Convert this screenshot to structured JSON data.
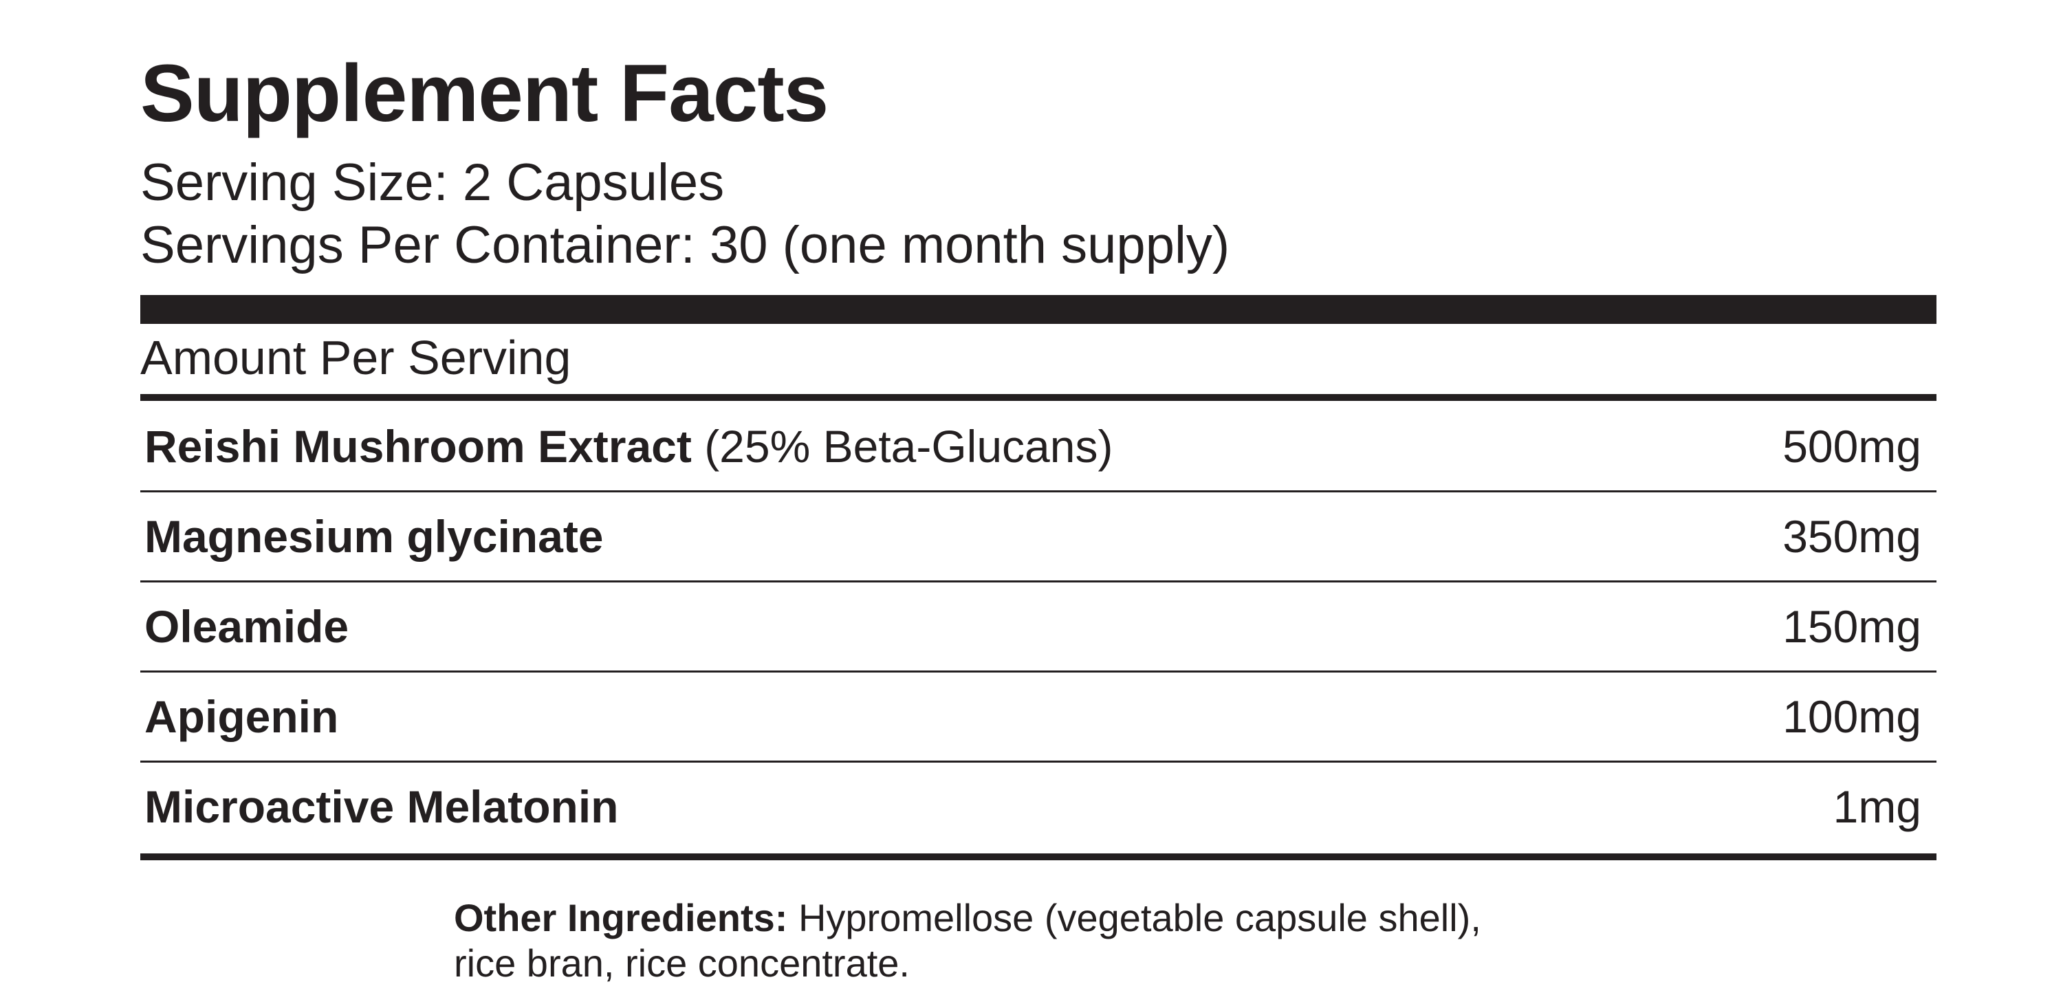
{
  "header": {
    "title": "Supplement Facts",
    "serving_size": "Serving Size: 2 Capsules",
    "servings_per_container": "Servings Per Container: 30 (one month supply)"
  },
  "table": {
    "header": "Amount Per Serving",
    "rows": [
      {
        "name": "Reishi Mushroom Extract",
        "note": "(25% Beta-Glucans)",
        "amount": "500mg"
      },
      {
        "name": "Magnesium glycinate",
        "amount": "350mg"
      },
      {
        "name": "Oleamide",
        "amount": "150mg"
      },
      {
        "name": "Apigenin",
        "amount": "100mg"
      },
      {
        "name": "Microactive Melatonin",
        "amount": "1mg"
      }
    ]
  },
  "other_ingredients": {
    "label": "Other Ingredients:",
    "lines": [
      "Hypromellose (vegetable capsule shell),",
      "rice bran, rice concentrate."
    ]
  }
}
